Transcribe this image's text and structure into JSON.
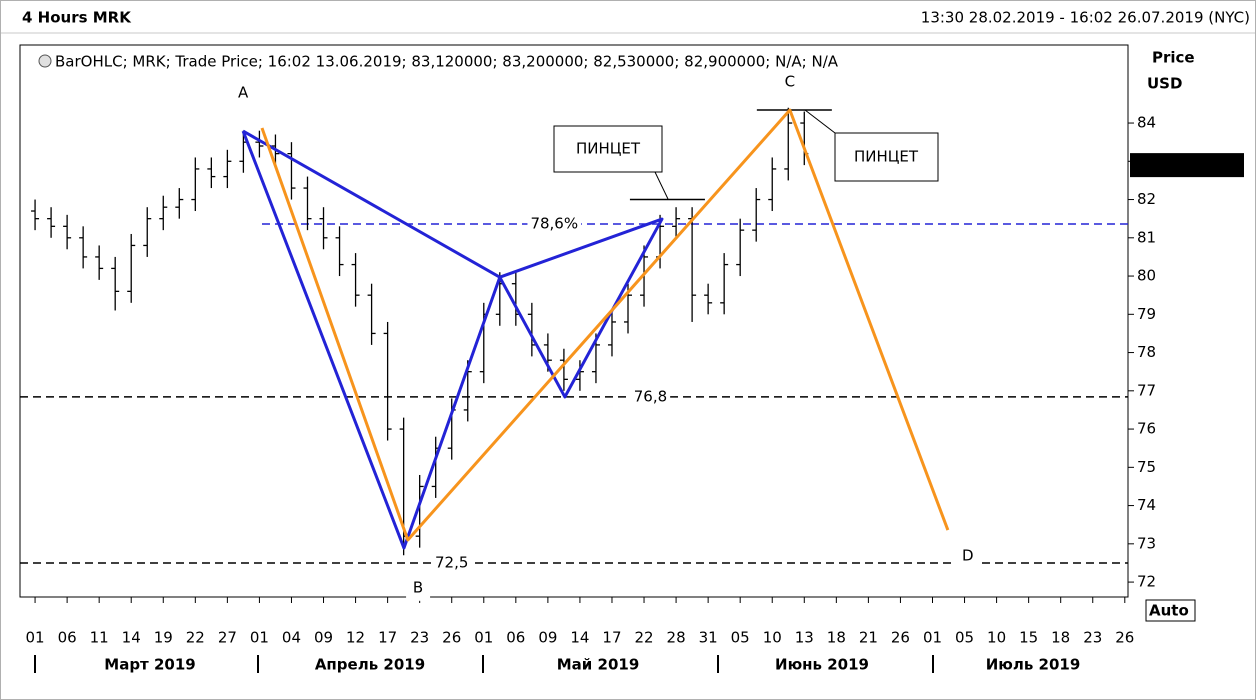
{
  "header": {
    "title": "4 Hours MRK",
    "range": "13:30 28.02.2019 - 16:02 26.07.2019 (NYC)"
  },
  "chart_data": {
    "type": "ohlc",
    "subtitle": "BarOHLC; MRK; Trade Price; 16:02 13.06.2019; 83,120000; 83,200000; 82,530000; 82,900000; N/A; N/A",
    "y_label": [
      "Price",
      "USD"
    ],
    "x": [
      0,
      0.5,
      1,
      1.5,
      2,
      2.5,
      3,
      3.5,
      4,
      4.5,
      5,
      5.5,
      6,
      6.5,
      7,
      7.5,
      8,
      8.5,
      9,
      9.5,
      10,
      10.5,
      11,
      11.5,
      12,
      12.5,
      13,
      13.5,
      14,
      14.5,
      15,
      15.5,
      16,
      16.5,
      17,
      17.5,
      18,
      18.5,
      19,
      19.5,
      20,
      20.5,
      21,
      21.5,
      22,
      22.5,
      23,
      23.5,
      24
    ],
    "open": [
      81.7,
      81.5,
      81.3,
      81.0,
      80.5,
      80.2,
      79.6,
      80.8,
      81.5,
      81.8,
      82.0,
      82.8,
      82.6,
      83.0,
      83.5,
      83.4,
      83.2,
      82.3,
      81.5,
      81.0,
      80.3,
      79.5,
      78.5,
      76.0,
      73.2,
      74.5,
      75.5,
      76.5,
      77.5,
      79.0,
      79.8,
      79.0,
      78.2,
      77.8,
      77.3,
      77.5,
      78.2,
      78.8,
      79.5,
      80.5,
      81.3,
      81.5,
      79.5,
      79.3,
      80.3,
      81.2,
      82.0,
      82.8,
      84.0
    ],
    "high": [
      82.0,
      81.8,
      81.6,
      81.3,
      80.8,
      80.5,
      81.1,
      81.8,
      82.1,
      82.3,
      83.1,
      83.1,
      83.3,
      83.8,
      83.8,
      83.7,
      83.5,
      82.6,
      81.8,
      81.3,
      80.6,
      79.8,
      78.8,
      76.3,
      74.8,
      75.8,
      76.8,
      77.8,
      79.3,
      80.1,
      80.1,
      79.3,
      78.5,
      78.1,
      77.8,
      78.5,
      79.1,
      79.8,
      80.8,
      81.6,
      81.8,
      81.8,
      79.8,
      80.6,
      81.5,
      82.3,
      83.1,
      84.4,
      84.3
    ],
    "low": [
      81.2,
      81.0,
      80.7,
      80.2,
      79.9,
      79.1,
      79.3,
      80.5,
      81.2,
      81.5,
      81.7,
      82.3,
      82.3,
      82.7,
      83.1,
      82.9,
      82.0,
      81.2,
      80.7,
      80.0,
      79.2,
      78.2,
      75.7,
      72.7,
      72.9,
      74.2,
      75.2,
      76.2,
      77.2,
      78.7,
      78.7,
      77.9,
      77.5,
      77.0,
      77.0,
      77.2,
      77.9,
      78.5,
      79.2,
      80.2,
      81.0,
      78.8,
      79.0,
      79.0,
      80.0,
      80.9,
      81.7,
      82.5,
      82.9
    ],
    "close": [
      81.5,
      81.3,
      81.0,
      80.5,
      80.2,
      79.6,
      80.8,
      81.5,
      81.8,
      82.0,
      82.8,
      82.6,
      83.0,
      83.5,
      83.4,
      83.2,
      82.3,
      81.5,
      81.0,
      80.3,
      79.5,
      78.5,
      76.0,
      73.2,
      74.5,
      75.5,
      76.5,
      77.5,
      79.0,
      79.8,
      79.0,
      78.2,
      77.8,
      77.3,
      77.5,
      78.2,
      78.8,
      79.5,
      80.5,
      81.3,
      81.5,
      79.5,
      79.3,
      80.3,
      81.2,
      82.0,
      82.8,
      84.0,
      83.2
    ],
    "color": "#000000",
    "xlim": [
      -0.47,
      34.1
    ],
    "ylim": [
      71.61,
      86.04
    ],
    "yticks": [
      72,
      73,
      74,
      75,
      76,
      77,
      78,
      79,
      80,
      81,
      82,
      83,
      84
    ],
    "xticks": [
      {
        "value": 0,
        "label": "01"
      },
      {
        "value": 1,
        "label": "06"
      },
      {
        "value": 2,
        "label": "11"
      },
      {
        "value": 3,
        "label": "14"
      },
      {
        "value": 4,
        "label": "19"
      },
      {
        "value": 5,
        "label": "22"
      },
      {
        "value": 6,
        "label": "27"
      },
      {
        "value": 7,
        "label": "01"
      },
      {
        "value": 8,
        "label": "04"
      },
      {
        "value": 9,
        "label": "09"
      },
      {
        "value": 10,
        "label": "12"
      },
      {
        "value": 11,
        "label": "17"
      },
      {
        "value": 12,
        "label": "23"
      },
      {
        "value": 13,
        "label": "26"
      },
      {
        "value": 14,
        "label": "01"
      },
      {
        "value": 15,
        "label": "06"
      },
      {
        "value": 16,
        "label": "09"
      },
      {
        "value": 17,
        "label": "14"
      },
      {
        "value": 18,
        "label": "17"
      },
      {
        "value": 19,
        "label": "22"
      },
      {
        "value": 20,
        "label": "28"
      },
      {
        "value": 21,
        "label": "31"
      },
      {
        "value": 22,
        "label": "05"
      },
      {
        "value": 23,
        "label": "10"
      },
      {
        "value": 24,
        "label": "13"
      },
      {
        "value": 25,
        "label": "18"
      },
      {
        "value": 26,
        "label": "21"
      },
      {
        "value": 27,
        "label": "26"
      },
      {
        "value": 28,
        "label": "01"
      },
      {
        "value": 29,
        "label": "05"
      },
      {
        "value": 30,
        "label": "10"
      },
      {
        "value": 31,
        "label": "15"
      },
      {
        "value": 32,
        "label": "18"
      },
      {
        "value": 33,
        "label": "23"
      },
      {
        "value": 34,
        "label": "26"
      }
    ],
    "months": [
      "Март 2019",
      "Апрель 2019",
      "Май 2019",
      "Июнь 2019",
      "Июль 2019"
    ],
    "last_value": 82.9,
    "last_value_label": "82,900000",
    "patterns": [
      {
        "color": "#2323d6",
        "x": [
          6.49,
          11.51,
          14.5,
          16.53,
          19.56,
          14.5,
          6.49
        ],
        "y": [
          83.79,
          72.89,
          79.97,
          76.84,
          81.49,
          79.97,
          83.79
        ]
      },
      {
        "color": "#f7941d",
        "x": [
          7.08,
          11.63,
          23.55,
          28.48
        ],
        "y": [
          83.87,
          73.1,
          84.34,
          73.36
        ]
      }
    ],
    "levels": [
      {
        "y": 81.36,
        "from": 7.08,
        "color": "#2323d6",
        "label": "78,6%",
        "label_color": "#ff0000",
        "label_x": 16.2
      },
      {
        "y": 76.84,
        "from": -0.47,
        "color": "#000000",
        "label": "76,8",
        "label_color": "#000000",
        "label_x": 19.2
      },
      {
        "y": 72.5,
        "from": -0.47,
        "color": "#000000",
        "label": "72,5",
        "label_color": "#000000",
        "label_x": 13.0
      }
    ],
    "tweezers": [
      {
        "y": 82.0,
        "x": [
          18.56,
          20.9
        ]
      },
      {
        "y": 84.34,
        "x": [
          22.52,
          24.86
        ]
      }
    ],
    "points": [
      {
        "label": "A",
        "x": 6.49,
        "y": 84.78
      },
      {
        "label": "B",
        "x": 11.95,
        "y": 71.85
      },
      {
        "label": "C",
        "x": 23.55,
        "y": 85.07
      },
      {
        "label": "D",
        "x": 29.1,
        "y": 72.68
      }
    ],
    "callouts": [
      "ПИНЦЕТ",
      "ПИНЦЕТ"
    ],
    "auto": "Auto"
  }
}
